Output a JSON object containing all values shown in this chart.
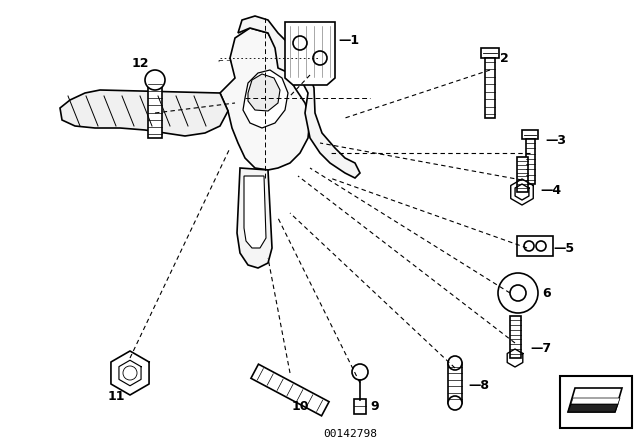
{
  "bg_color": "#ffffff",
  "line_color": "#000000",
  "watermark": "00142798",
  "figsize": [
    6.4,
    4.48
  ],
  "dpi": 100
}
